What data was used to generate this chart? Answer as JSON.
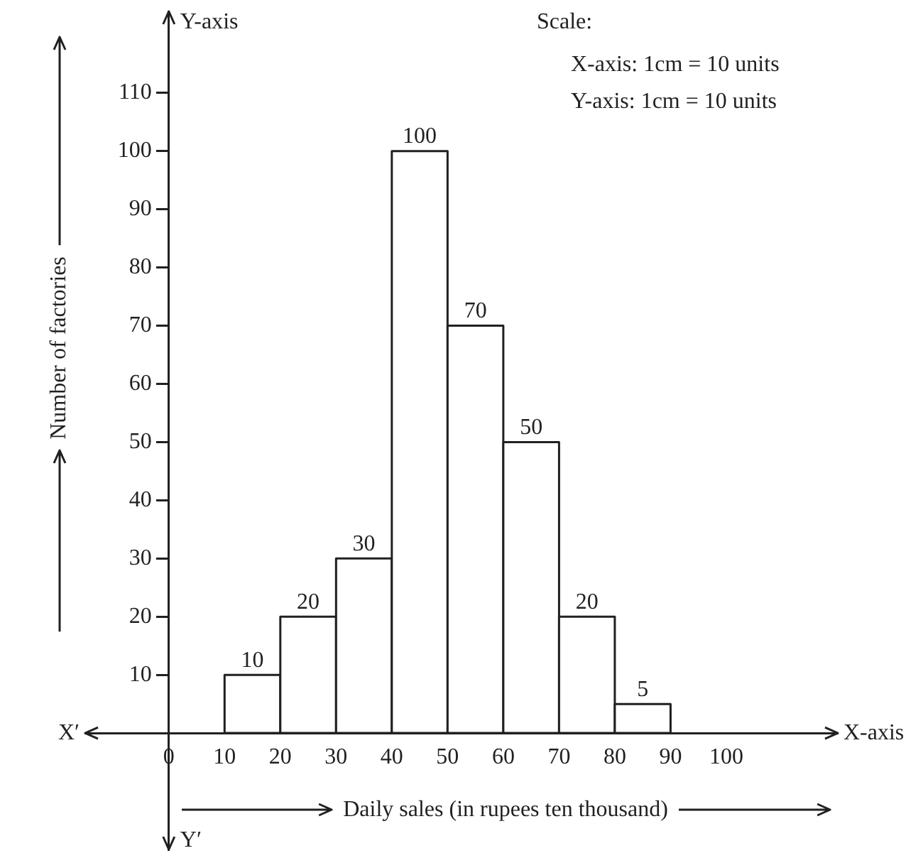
{
  "chart_data": {
    "type": "histogram",
    "xlabel": "Daily sales (in rupees ten thousand)",
    "ylabel": "Number of factories",
    "bins": [
      10,
      20,
      30,
      40,
      50,
      60,
      70,
      80,
      90
    ],
    "values": [
      10,
      20,
      30,
      100,
      70,
      50,
      20,
      5
    ],
    "color": "#ffffff",
    "data_labels": true,
    "xlim": [
      -15,
      120
    ],
    "ylim": [
      -20,
      124
    ],
    "xticks": [
      0,
      10,
      20,
      30,
      40,
      50,
      60,
      70,
      80,
      90,
      100
    ],
    "yticks": [
      10,
      20,
      30,
      40,
      50,
      60,
      70,
      80,
      90,
      100,
      110
    ],
    "annotations": [
      "Y-axis",
      "Y′",
      "X′",
      "X-axis",
      "Scale:",
      "X-axis: 1cm = 10 units",
      "Y-axis: 1cm = 10 units"
    ]
  }
}
